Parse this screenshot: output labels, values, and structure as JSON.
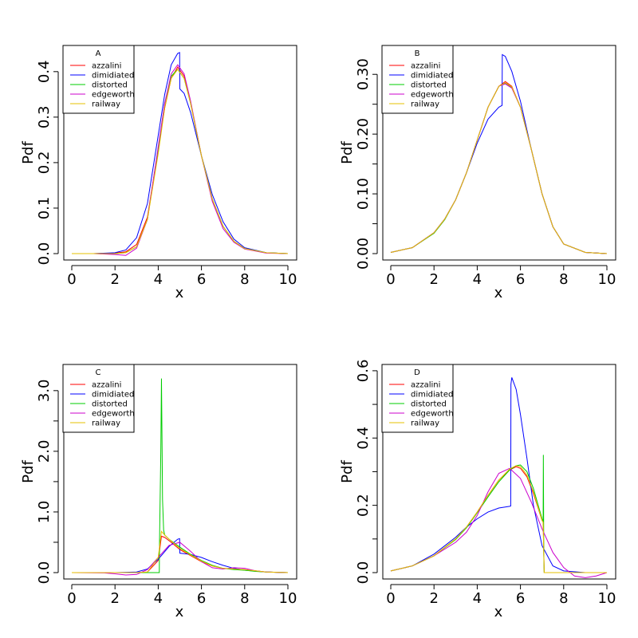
{
  "chart_data": [
    {
      "panel": "A",
      "type": "line",
      "xlabel": "x",
      "ylabel": "Pdf",
      "xlim": [
        0,
        10
      ],
      "ylim": [
        0,
        0.44
      ],
      "xticks": [
        0,
        2,
        4,
        6,
        8,
        10
      ],
      "yticks": [
        0.0,
        0.1,
        0.2,
        0.3,
        0.4
      ],
      "ytick_labels": [
        "0.0",
        "0.1",
        "0.2",
        "0.3",
        "0.4"
      ],
      "legend": {
        "title": "A",
        "position": "top-left"
      },
      "series": [
        {
          "name": "azzalini",
          "color": "#ff0000",
          "x": [
            0,
            1,
            2,
            2.5,
            3,
            3.5,
            4,
            4.3,
            4.6,
            4.9,
            5.2,
            5.5,
            6,
            6.5,
            7,
            7.5,
            8,
            9,
            10
          ],
          "y": [
            0,
            0,
            0.001,
            0.004,
            0.02,
            0.08,
            0.23,
            0.32,
            0.385,
            0.41,
            0.39,
            0.33,
            0.215,
            0.12,
            0.06,
            0.027,
            0.011,
            0.002,
            0
          ]
        },
        {
          "name": "dimidiated",
          "color": "#0000ff",
          "x": [
            0,
            1,
            2,
            2.5,
            3,
            3.5,
            4,
            4.3,
            4.6,
            4.9,
            4.99,
            5.0,
            5.2,
            5.5,
            6,
            6.5,
            7,
            7.5,
            8,
            9,
            10
          ],
          "y": [
            0,
            0,
            0.002,
            0.008,
            0.035,
            0.11,
            0.26,
            0.35,
            0.415,
            0.44,
            0.442,
            0.362,
            0.352,
            0.31,
            0.215,
            0.13,
            0.07,
            0.032,
            0.013,
            0.002,
            0
          ]
        },
        {
          "name": "distorted",
          "color": "#00cc00",
          "x": [
            0,
            1,
            2,
            2.5,
            3,
            3.5,
            4,
            4.3,
            4.6,
            4.9,
            5.2,
            5.5,
            6,
            6.5,
            7,
            7.5,
            8,
            9,
            10
          ],
          "y": [
            0,
            0,
            0,
            0.002,
            0.015,
            0.075,
            0.23,
            0.33,
            0.39,
            0.405,
            0.385,
            0.33,
            0.215,
            0.12,
            0.06,
            0.027,
            0.011,
            0.002,
            0
          ]
        },
        {
          "name": "edgeworth",
          "color": "#cc00cc",
          "x": [
            0,
            1,
            2,
            2.5,
            3,
            3.5,
            4,
            4.3,
            4.6,
            4.9,
            5.2,
            5.5,
            6,
            6.5,
            7,
            7.5,
            8,
            9,
            10
          ],
          "y": [
            0,
            0,
            -0.002,
            -0.004,
            0.012,
            0.075,
            0.235,
            0.33,
            0.395,
            0.415,
            0.395,
            0.335,
            0.215,
            0.115,
            0.055,
            0.025,
            0.01,
            0.001,
            0
          ]
        },
        {
          "name": "railway",
          "color": "#e6c000",
          "x": [
            0,
            1,
            2,
            2.5,
            3,
            3.5,
            4,
            4.3,
            4.6,
            4.9,
            5.2,
            5.5,
            6,
            6.5,
            7,
            7.5,
            8,
            9,
            10
          ],
          "y": [
            0,
            0,
            0,
            0.002,
            0.015,
            0.075,
            0.22,
            0.32,
            0.385,
            0.405,
            0.385,
            0.33,
            0.215,
            0.12,
            0.06,
            0.027,
            0.011,
            0.002,
            0
          ]
        }
      ]
    },
    {
      "panel": "B",
      "type": "line",
      "xlabel": "x",
      "ylabel": "Pdf",
      "xlim": [
        0,
        10
      ],
      "ylim": [
        0,
        0.335
      ],
      "xticks": [
        0,
        2,
        4,
        6,
        8,
        10
      ],
      "yticks": [
        0.0,
        0.1,
        0.2,
        0.3
      ],
      "ytick_labels": [
        "0.00",
        "0.10",
        "0.20",
        "0.30"
      ],
      "yminor": [
        0.05,
        0.15,
        0.25
      ],
      "legend": {
        "title": "B",
        "position": "top-left"
      },
      "series": [
        {
          "name": "azzalini",
          "color": "#ff0000",
          "x": [
            0,
            1,
            2,
            2.5,
            3,
            3.5,
            4,
            4.5,
            5,
            5.3,
            5.6,
            6,
            6.5,
            7,
            7.5,
            8,
            9,
            10
          ],
          "y": [
            0.002,
            0.01,
            0.035,
            0.058,
            0.09,
            0.135,
            0.19,
            0.245,
            0.28,
            0.288,
            0.28,
            0.245,
            0.175,
            0.1,
            0.045,
            0.016,
            0.002,
            0
          ]
        },
        {
          "name": "dimidiated",
          "color": "#0000ff",
          "x": [
            0,
            1,
            2,
            2.5,
            3,
            3.5,
            4,
            4.5,
            5,
            5.15,
            5.16,
            5.3,
            5.6,
            6,
            6.5,
            7,
            7.5,
            8,
            9,
            10
          ],
          "y": [
            0.002,
            0.01,
            0.035,
            0.058,
            0.09,
            0.135,
            0.185,
            0.225,
            0.245,
            0.248,
            0.333,
            0.33,
            0.305,
            0.255,
            0.175,
            0.1,
            0.045,
            0.016,
            0.002,
            0
          ]
        },
        {
          "name": "distorted",
          "color": "#00cc00",
          "x": [
            0,
            1,
            2,
            2.5,
            3,
            3.5,
            4,
            4.5,
            5,
            5.3,
            5.6,
            6,
            6.5,
            7,
            7.5,
            8,
            9,
            10
          ],
          "y": [
            0.002,
            0.01,
            0.034,
            0.057,
            0.09,
            0.135,
            0.19,
            0.245,
            0.28,
            0.285,
            0.278,
            0.245,
            0.175,
            0.1,
            0.045,
            0.016,
            0.002,
            0
          ]
        },
        {
          "name": "edgeworth",
          "color": "#cc00cc",
          "x": [
            0,
            1,
            2,
            2.5,
            3,
            3.5,
            4,
            4.5,
            5,
            5.3,
            5.6,
            6,
            6.5,
            7,
            7.5,
            8,
            9,
            10
          ],
          "y": [
            0.002,
            0.01,
            0.035,
            0.058,
            0.09,
            0.135,
            0.19,
            0.245,
            0.28,
            0.284,
            0.277,
            0.245,
            0.175,
            0.1,
            0.045,
            0.016,
            0.002,
            0
          ]
        },
        {
          "name": "railway",
          "color": "#e6c000",
          "x": [
            0,
            1,
            2,
            2.5,
            3,
            3.5,
            4,
            4.5,
            5,
            5.3,
            5.6,
            6,
            6.5,
            7,
            7.5,
            8,
            9,
            10
          ],
          "y": [
            0.002,
            0.01,
            0.035,
            0.058,
            0.09,
            0.135,
            0.19,
            0.245,
            0.28,
            0.286,
            0.279,
            0.245,
            0.175,
            0.1,
            0.045,
            0.016,
            0.002,
            0
          ]
        }
      ]
    },
    {
      "panel": "C",
      "type": "line",
      "xlabel": "x",
      "ylabel": "Pdf",
      "xlim": [
        0,
        10
      ],
      "ylim": [
        0,
        3.3
      ],
      "xticks": [
        0,
        2,
        4,
        6,
        8,
        10
      ],
      "yticks": [
        0.0,
        1.0,
        2.0,
        3.0
      ],
      "ytick_labels": [
        "0.0",
        "1.0",
        "2.0",
        "3.0"
      ],
      "yminor": [
        0.5,
        1.5,
        2.5
      ],
      "legend": {
        "title": "C",
        "position": "top-left"
      },
      "series": [
        {
          "name": "azzalini",
          "color": "#ff0000",
          "x": [
            0,
            2,
            3,
            3.5,
            4,
            4.15,
            4.3,
            4.6,
            5,
            5.5,
            6,
            6.5,
            7,
            7.5,
            8,
            8.5,
            9,
            10
          ],
          "y": [
            0,
            0,
            0,
            0.01,
            0.2,
            0.6,
            0.58,
            0.5,
            0.38,
            0.28,
            0.18,
            0.11,
            0.07,
            0.06,
            0.05,
            0.03,
            0.01,
            0
          ]
        },
        {
          "name": "dimidiated",
          "color": "#0000ff",
          "x": [
            0,
            2,
            3,
            3.5,
            4,
            4.5,
            4.9,
            4.99,
            5.0,
            5.5,
            6,
            6.5,
            7,
            7.5,
            8,
            9,
            10
          ],
          "y": [
            0,
            0,
            0.01,
            0.06,
            0.22,
            0.43,
            0.55,
            0.56,
            0.32,
            0.3,
            0.25,
            0.18,
            0.12,
            0.07,
            0.04,
            0.01,
            0
          ]
        },
        {
          "name": "distorted",
          "color": "#00cc00",
          "x": [
            0,
            4.05,
            4.06,
            4.12,
            4.15,
            4.2,
            4.25,
            4.3,
            4.5,
            5,
            5.5,
            6,
            6.5,
            7,
            7.5,
            8,
            8.5,
            9,
            10
          ],
          "y": [
            0,
            0,
            0.5,
            2.0,
            3.2,
            1.2,
            0.7,
            0.62,
            0.55,
            0.42,
            0.3,
            0.2,
            0.12,
            0.07,
            0.05,
            0.04,
            0.02,
            0.01,
            0
          ]
        },
        {
          "name": "edgeworth",
          "color": "#cc00cc",
          "x": [
            0,
            1.5,
            2,
            2.5,
            3,
            3.5,
            4,
            4.5,
            5,
            5.5,
            6,
            6.5,
            7,
            7.5,
            8,
            8.5,
            9,
            10
          ],
          "y": [
            0,
            -0.005,
            -0.02,
            -0.04,
            -0.03,
            0.05,
            0.25,
            0.45,
            0.5,
            0.35,
            0.18,
            0.08,
            0.06,
            0.08,
            0.07,
            0.03,
            0.01,
            0
          ]
        },
        {
          "name": "railway",
          "color": "#e6c000",
          "x": [
            0,
            2,
            3,
            3.5,
            4,
            4.15,
            4.3,
            4.6,
            5,
            5.5,
            6,
            6.5,
            7,
            7.5,
            8,
            8.5,
            9,
            10
          ],
          "y": [
            0,
            0,
            0,
            0.01,
            0.25,
            0.68,
            0.62,
            0.52,
            0.4,
            0.29,
            0.19,
            0.11,
            0.07,
            0.06,
            0.05,
            0.03,
            0.01,
            0
          ]
        }
      ]
    },
    {
      "panel": "D",
      "type": "line",
      "xlabel": "x",
      "ylabel": "Pdf",
      "xlim": [
        0,
        10
      ],
      "ylim": [
        0,
        0.595
      ],
      "xticks": [
        0,
        2,
        4,
        6,
        8,
        10
      ],
      "yticks": [
        0.0,
        0.2,
        0.4,
        0.6
      ],
      "ytick_labels": [
        "0.0",
        "0.2",
        "0.4",
        "0.6"
      ],
      "yminor": [
        0.1,
        0.3,
        0.5
      ],
      "legend": {
        "title": "D",
        "position": "top-left"
      },
      "series": [
        {
          "name": "azzalini",
          "color": "#ff0000",
          "x": [
            0,
            1,
            2,
            3,
            3.5,
            4,
            4.5,
            5,
            5.5,
            5.8,
            6,
            6.3,
            6.6,
            7,
            7.05,
            7.1,
            7.5,
            8,
            9,
            10
          ],
          "y": [
            0.005,
            0.02,
            0.05,
            0.1,
            0.135,
            0.18,
            0.23,
            0.275,
            0.305,
            0.315,
            0.31,
            0.285,
            0.235,
            0.155,
            0.15,
            0,
            0,
            0,
            0,
            0
          ]
        },
        {
          "name": "dimidiated",
          "color": "#0000ff",
          "x": [
            0,
            1,
            2,
            3,
            3.5,
            4,
            4.5,
            5,
            5.5,
            5.55,
            5.56,
            5.6,
            5.8,
            6,
            6.3,
            6.6,
            7,
            7.5,
            8,
            9,
            10
          ],
          "y": [
            0.005,
            0.02,
            0.055,
            0.105,
            0.135,
            0.16,
            0.18,
            0.192,
            0.197,
            0.198,
            0.56,
            0.58,
            0.545,
            0.47,
            0.34,
            0.2,
            0.08,
            0.02,
            0.005,
            0,
            0
          ]
        },
        {
          "name": "distorted",
          "color": "#00cc00",
          "x": [
            0,
            1,
            2,
            3,
            3.5,
            4,
            4.5,
            5,
            5.5,
            5.8,
            6,
            6.3,
            6.6,
            7,
            7.05,
            7.06,
            7.08,
            7.1,
            7.5,
            8,
            9,
            10
          ],
          "y": [
            0.005,
            0.02,
            0.05,
            0.098,
            0.133,
            0.178,
            0.225,
            0.27,
            0.305,
            0.318,
            0.32,
            0.3,
            0.25,
            0.16,
            0.15,
            0.35,
            0.05,
            0,
            0,
            0,
            0,
            0
          ]
        },
        {
          "name": "edgeworth",
          "color": "#cc00cc",
          "x": [
            0,
            1,
            2,
            3,
            3.5,
            4,
            4.5,
            5,
            5.5,
            6,
            6.5,
            7,
            7.5,
            8,
            8.5,
            9,
            9.5,
            10
          ],
          "y": [
            0.005,
            0.02,
            0.05,
            0.09,
            0.12,
            0.17,
            0.24,
            0.295,
            0.31,
            0.28,
            0.21,
            0.13,
            0.06,
            0.015,
            -0.01,
            -0.015,
            -0.01,
            0
          ]
        },
        {
          "name": "railway",
          "color": "#e6c000",
          "x": [
            0,
            1,
            2,
            3,
            3.5,
            4,
            4.5,
            5,
            5.5,
            5.8,
            6,
            6.3,
            6.6,
            7,
            7.05,
            7.1,
            7.5,
            8,
            9,
            10
          ],
          "y": [
            0.005,
            0.02,
            0.05,
            0.1,
            0.135,
            0.18,
            0.23,
            0.275,
            0.308,
            0.318,
            0.315,
            0.29,
            0.24,
            0.155,
            0.15,
            0,
            0,
            0,
            0,
            0
          ]
        }
      ]
    }
  ]
}
